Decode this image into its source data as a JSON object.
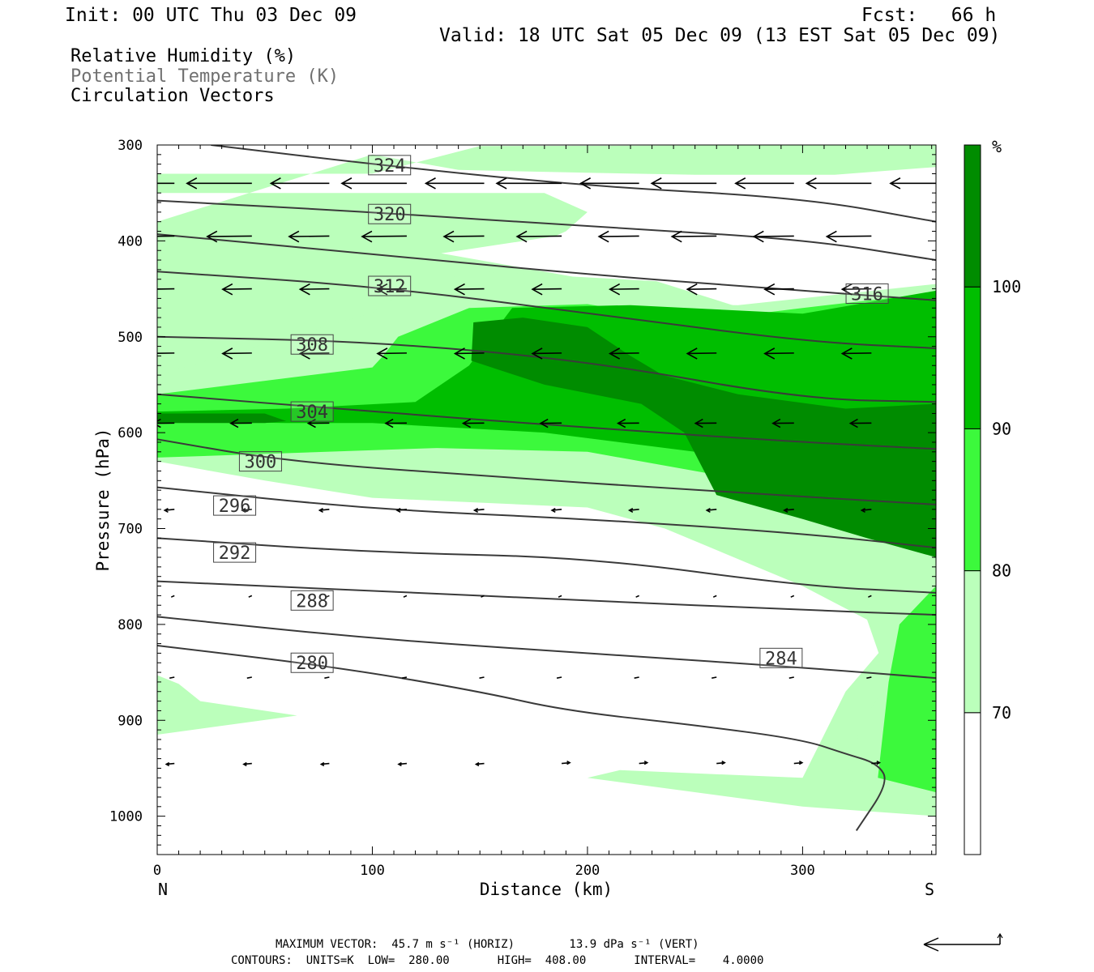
{
  "header": {
    "init": "Init: 00 UTC Thu 03 Dec 09",
    "fcst": "Fcst:   66 h",
    "valid": "Valid: 18 UTC Sat 05 Dec 09 (13 EST Sat 05 Dec 09)"
  },
  "legend": {
    "line1": "Relative Humidity (%)",
    "line2": "Potential Temperature (K)",
    "line3": "Circulation Vectors"
  },
  "footer": {
    "max_vector": "MAXIMUM VECTOR:  45.7 m s⁻¹ (HORIZ)        13.9 dPa s⁻¹ (VERT)",
    "contours": "CONTOURS:  UNITS=K  LOW=  280.00       HIGH=  408.00       INTERVAL=    4.0000"
  },
  "chart_data": {
    "type": "cross-section",
    "xlabel": "Distance (km)",
    "ylabel": "Pressure (hPa)",
    "x_ticks": [
      0,
      100,
      200,
      300
    ],
    "y_ticks": [
      300,
      400,
      500,
      600,
      700,
      800,
      900,
      1000
    ],
    "xlim": [
      0,
      362
    ],
    "ylim": [
      1040,
      300
    ],
    "x_end_labels": {
      "left": "N",
      "right": "S"
    },
    "colorbar": {
      "unit": "%",
      "levels": [
        70,
        80,
        90,
        100
      ],
      "colors": [
        "#ffffff",
        "#bbffbb",
        "#3cf93c",
        "#00be00",
        "#008c00"
      ]
    },
    "colors": {
      "rh_70_80": "#bbffbb",
      "rh_80_90": "#3cf93c",
      "rh_90_100": "#00be00",
      "rh_100": "#008c00",
      "theta_line": "#3a3a3a"
    },
    "rh_regions": [
      {
        "level": "70-80",
        "polygon": [
          [
            150,
            301
          ],
          [
            357,
            300
          ],
          [
            362,
            300
          ],
          [
            362,
            323
          ],
          [
            315,
            331
          ],
          [
            250,
            331
          ],
          [
            200,
            329
          ],
          [
            140,
            326
          ],
          [
            100,
            310
          ],
          [
            0,
            380
          ],
          [
            0,
            600
          ],
          [
            100,
            480
          ],
          [
            150,
            465
          ],
          [
            270,
            467
          ],
          [
            362,
            445
          ],
          [
            362,
            760
          ],
          [
            320,
            870
          ],
          [
            300,
            960
          ],
          [
            215,
            952
          ],
          [
            200,
            960
          ],
          [
            300,
            990
          ],
          [
            362,
            1000
          ],
          [
            362,
            545
          ],
          [
            340,
            550
          ],
          [
            330,
            540
          ],
          [
            320,
            500
          ],
          [
            200,
            440
          ],
          [
            132,
            413
          ],
          [
            185,
            395
          ],
          [
            190,
            390
          ],
          [
            200,
            370
          ],
          [
            180,
            350
          ],
          [
            0,
            350
          ],
          [
            0,
            330
          ],
          [
            100,
            330
          ]
        ]
      },
      {
        "level": "70-80",
        "polygon": [
          [
            0,
            555
          ],
          [
            0,
            630
          ],
          [
            50,
            650
          ],
          [
            100,
            668
          ],
          [
            200,
            678
          ],
          [
            236,
            700
          ],
          [
            300,
            760
          ],
          [
            330,
            795
          ],
          [
            340,
            860
          ],
          [
            328,
            900
          ],
          [
            320,
            960
          ],
          [
            350,
            995
          ],
          [
            362,
            1000
          ],
          [
            362,
            545
          ],
          [
            300,
            490
          ],
          [
            232,
            442
          ],
          [
            150,
            432
          ],
          [
            120,
            445
          ],
          [
            100,
            475
          ],
          [
            0,
            540
          ]
        ]
      },
      {
        "level": "70-80",
        "polygon": [
          [
            0,
            853
          ],
          [
            10,
            862
          ],
          [
            20,
            880
          ],
          [
            65,
            895
          ],
          [
            0,
            915
          ]
        ]
      },
      {
        "level": "80-90",
        "polygon": [
          [
            0,
            560
          ],
          [
            0,
            626
          ],
          [
            130,
            616
          ],
          [
            200,
            620
          ],
          [
            280,
            652
          ],
          [
            330,
            690
          ],
          [
            362,
            700
          ],
          [
            362,
            454
          ],
          [
            300,
            470
          ],
          [
            250,
            484
          ],
          [
            200,
            466
          ],
          [
            145,
            470
          ],
          [
            112,
            500
          ],
          [
            105,
            520
          ],
          [
            100,
            532
          ],
          [
            0,
            560
          ]
        ]
      },
      {
        "level": "80-90",
        "polygon": [
          [
            362,
            760
          ],
          [
            345,
            800
          ],
          [
            340,
            860
          ],
          [
            338,
            900
          ],
          [
            335,
            960
          ],
          [
            362,
            975
          ]
        ]
      },
      {
        "level": "90-100",
        "polygon": [
          [
            0,
            578
          ],
          [
            0,
            588
          ],
          [
            60,
            590
          ],
          [
            100,
            590
          ],
          [
            180,
            600
          ],
          [
            250,
            620
          ],
          [
            310,
            640
          ],
          [
            362,
            680
          ],
          [
            362,
            452
          ],
          [
            300,
            476
          ],
          [
            220,
            467
          ],
          [
            165,
            470
          ],
          [
            145,
            530
          ],
          [
            120,
            568
          ],
          [
            60,
            575
          ]
        ]
      },
      {
        "level": "100",
        "polygon": [
          [
            147,
            485
          ],
          [
            146,
            525
          ],
          [
            180,
            550
          ],
          [
            225,
            570
          ],
          [
            245,
            600
          ],
          [
            260,
            665
          ],
          [
            300,
            690
          ],
          [
            330,
            710
          ],
          [
            362,
            730
          ],
          [
            362,
            570
          ],
          [
            320,
            575
          ],
          [
            270,
            560
          ],
          [
            235,
            540
          ],
          [
            220,
            520
          ],
          [
            200,
            490
          ],
          [
            170,
            480
          ]
        ]
      },
      {
        "level": "100",
        "polygon": [
          [
            0,
            580
          ],
          [
            0,
            590
          ],
          [
            50,
            590
          ],
          [
            60,
            588
          ],
          [
            50,
            580
          ]
        ]
      }
    ],
    "theta_contours": [
      {
        "label": 324,
        "points": [
          [
            25,
            300
          ],
          [
            100,
            320
          ],
          [
            200,
            343
          ],
          [
            300,
            355
          ],
          [
            362,
            380
          ]
        ],
        "label_at": [
          108,
          321
        ]
      },
      {
        "label": 320,
        "points": [
          [
            0,
            358
          ],
          [
            100,
            370
          ],
          [
            200,
            385
          ],
          [
            300,
            398
          ],
          [
            362,
            420
          ]
        ],
        "label_at": [
          108,
          372
        ]
      },
      {
        "label": 316,
        "points": [
          [
            0,
            393
          ],
          [
            120,
            418
          ],
          [
            200,
            435
          ],
          [
            300,
            452
          ],
          [
            362,
            462
          ]
        ],
        "label_at": [
          330,
          455
        ]
      },
      {
        "label": 312,
        "points": [
          [
            0,
            432
          ],
          [
            100,
            447
          ],
          [
            200,
            475
          ],
          [
            300,
            505
          ],
          [
            362,
            512
          ]
        ],
        "label_at": [
          108,
          447
        ]
      },
      {
        "label": 308,
        "points": [
          [
            0,
            500
          ],
          [
            100,
            505
          ],
          [
            200,
            525
          ],
          [
            300,
            565
          ],
          [
            362,
            568
          ]
        ],
        "label_at": [
          72,
          508
        ]
      },
      {
        "label": 304,
        "points": [
          [
            0,
            560
          ],
          [
            100,
            578
          ],
          [
            200,
            595
          ],
          [
            300,
            610
          ],
          [
            362,
            617
          ]
        ],
        "label_at": [
          72,
          578
        ]
      },
      {
        "label": 300,
        "points": [
          [
            0,
            607
          ],
          [
            60,
            630
          ],
          [
            150,
            645
          ],
          [
            250,
            660
          ],
          [
            362,
            675
          ]
        ],
        "label_at": [
          48,
          630
        ]
      },
      {
        "label": 296,
        "points": [
          [
            0,
            657
          ],
          [
            100,
            680
          ],
          [
            200,
            690
          ],
          [
            300,
            705
          ],
          [
            362,
            720
          ]
        ],
        "label_at": [
          36,
          676
        ]
      },
      {
        "label": 292,
        "points": [
          [
            0,
            710
          ],
          [
            100,
            725
          ],
          [
            200,
            730
          ],
          [
            300,
            760
          ],
          [
            362,
            767
          ]
        ],
        "label_at": [
          36,
          725
        ]
      },
      {
        "label": 288,
        "points": [
          [
            0,
            755
          ],
          [
            100,
            765
          ],
          [
            200,
            775
          ],
          [
            300,
            785
          ],
          [
            362,
            790
          ]
        ],
        "label_at": [
          72,
          775
        ]
      },
      {
        "label": 284,
        "points": [
          [
            0,
            792
          ],
          [
            100,
            815
          ],
          [
            200,
            830
          ],
          [
            300,
            845
          ],
          [
            362,
            856
          ]
        ],
        "label_at": [
          290,
          835
        ]
      },
      {
        "label": 280,
        "points": [
          [
            0,
            822
          ],
          [
            85,
            845
          ],
          [
            150,
            870
          ],
          [
            190,
            890
          ],
          [
            250,
            905
          ],
          [
            300,
            920
          ],
          [
            320,
            935
          ],
          [
            335,
            945
          ],
          [
            340,
            965
          ],
          [
            325,
            1015
          ]
        ],
        "label_at": [
          72,
          840
        ]
      }
    ],
    "circulation_vectors_count": 90,
    "max_vector": {
      "horizontal": 45.7,
      "vertical": 13.9
    }
  }
}
